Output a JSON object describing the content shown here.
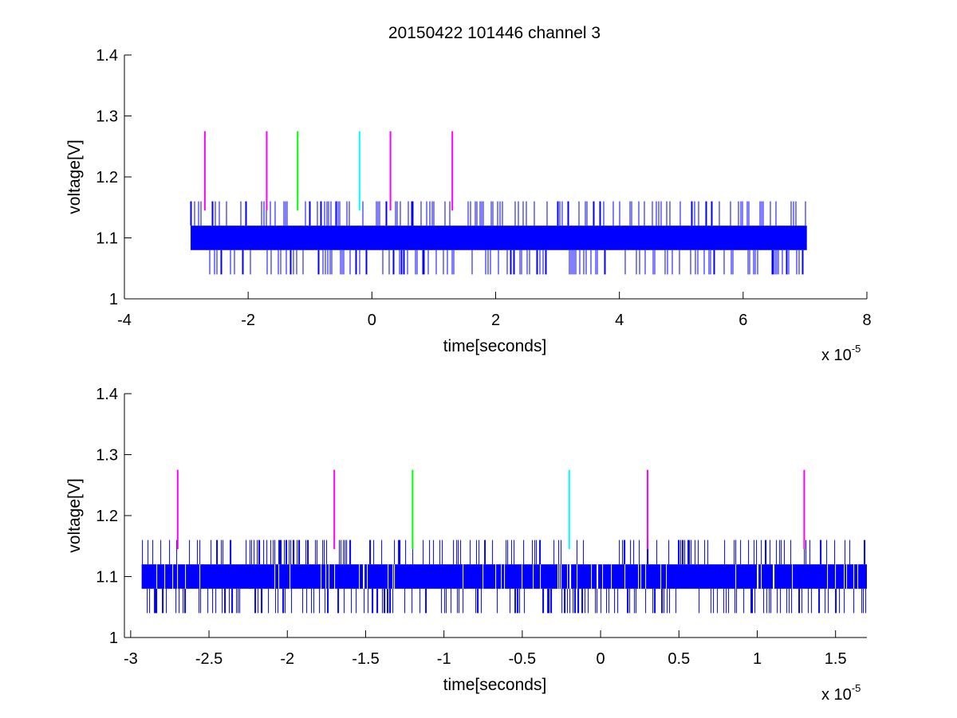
{
  "figure": {
    "background": "#ffffff",
    "axis_color": "#000000",
    "signal_color": "#0000ff"
  },
  "chart_data": [
    {
      "type": "line",
      "title": "20150422 101446 channel 3",
      "xlabel": "time[seconds]",
      "ylabel": "voltage[V]",
      "x_exponent_base": "x 10",
      "x_exponent_power": "-5",
      "xlim": [
        -4,
        8
      ],
      "ylim": [
        1,
        1.4
      ],
      "xticks": [
        -4,
        -2,
        0,
        2,
        4,
        6,
        8
      ],
      "xtick_labels": [
        "-4",
        "-2",
        "0",
        "2",
        "4",
        "6",
        "8"
      ],
      "yticks": [
        1,
        1.1,
        1.2,
        1.3,
        1.4
      ],
      "ytick_labels": [
        "1",
        "1.1",
        "1.2",
        "1.3",
        "1.4"
      ],
      "grid": false,
      "signal": {
        "x_range": [
          -2.93,
          7.03
        ],
        "base_levels": [
          1.08,
          1.12
        ],
        "high_level": 1.16,
        "low_level": 1.04
      },
      "markers": [
        {
          "x": -2.7,
          "y_range": [
            1.145,
            1.275
          ],
          "color": "#ff00ff"
        },
        {
          "x": -1.7,
          "y_range": [
            1.145,
            1.275
          ],
          "color": "#ff00ff"
        },
        {
          "x": -1.2,
          "y_range": [
            1.145,
            1.275
          ],
          "color": "#00ff00"
        },
        {
          "x": -0.2,
          "y_range": [
            1.145,
            1.275
          ],
          "color": "#00ffff"
        },
        {
          "x": 0.3,
          "y_range": [
            1.145,
            1.275
          ],
          "color": "#ff00ff"
        },
        {
          "x": 1.3,
          "y_range": [
            1.145,
            1.275
          ],
          "color": "#ff00ff"
        }
      ]
    },
    {
      "type": "line",
      "title": "",
      "xlabel": "time[seconds]",
      "ylabel": "voltage[V]",
      "x_exponent_base": "x 10",
      "x_exponent_power": "-5",
      "xlim": [
        -3.04,
        1.7
      ],
      "ylim": [
        1,
        1.4
      ],
      "xticks": [
        -3,
        -2.5,
        -2,
        -1.5,
        -1,
        -0.5,
        0,
        0.5,
        1,
        1.5
      ],
      "xtick_labels": [
        "-3",
        "-2.5",
        "-2",
        "-1.5",
        "-1",
        "-0.5",
        "0",
        "0.5",
        "1",
        "1.5"
      ],
      "yticks": [
        1,
        1.1,
        1.2,
        1.3,
        1.4
      ],
      "ytick_labels": [
        "1",
        "1.1",
        "1.2",
        "1.3",
        "1.4"
      ],
      "grid": false,
      "signal": {
        "x_range": [
          -2.93,
          1.7
        ],
        "base_levels": [
          1.08,
          1.12
        ],
        "high_level": 1.16,
        "low_level": 1.04
      },
      "markers": [
        {
          "x": -2.7,
          "y_range": [
            1.145,
            1.275
          ],
          "color": "#ff00ff"
        },
        {
          "x": -1.7,
          "y_range": [
            1.145,
            1.275
          ],
          "color": "#ff00ff"
        },
        {
          "x": -1.2,
          "y_range": [
            1.145,
            1.275
          ],
          "color": "#00ff00"
        },
        {
          "x": -0.2,
          "y_range": [
            1.145,
            1.275
          ],
          "color": "#00ffff"
        },
        {
          "x": 0.3,
          "y_range": [
            1.145,
            1.275
          ],
          "color": "#ff00ff"
        },
        {
          "x": 1.3,
          "y_range": [
            1.145,
            1.275
          ],
          "color": "#ff00ff"
        }
      ]
    }
  ]
}
